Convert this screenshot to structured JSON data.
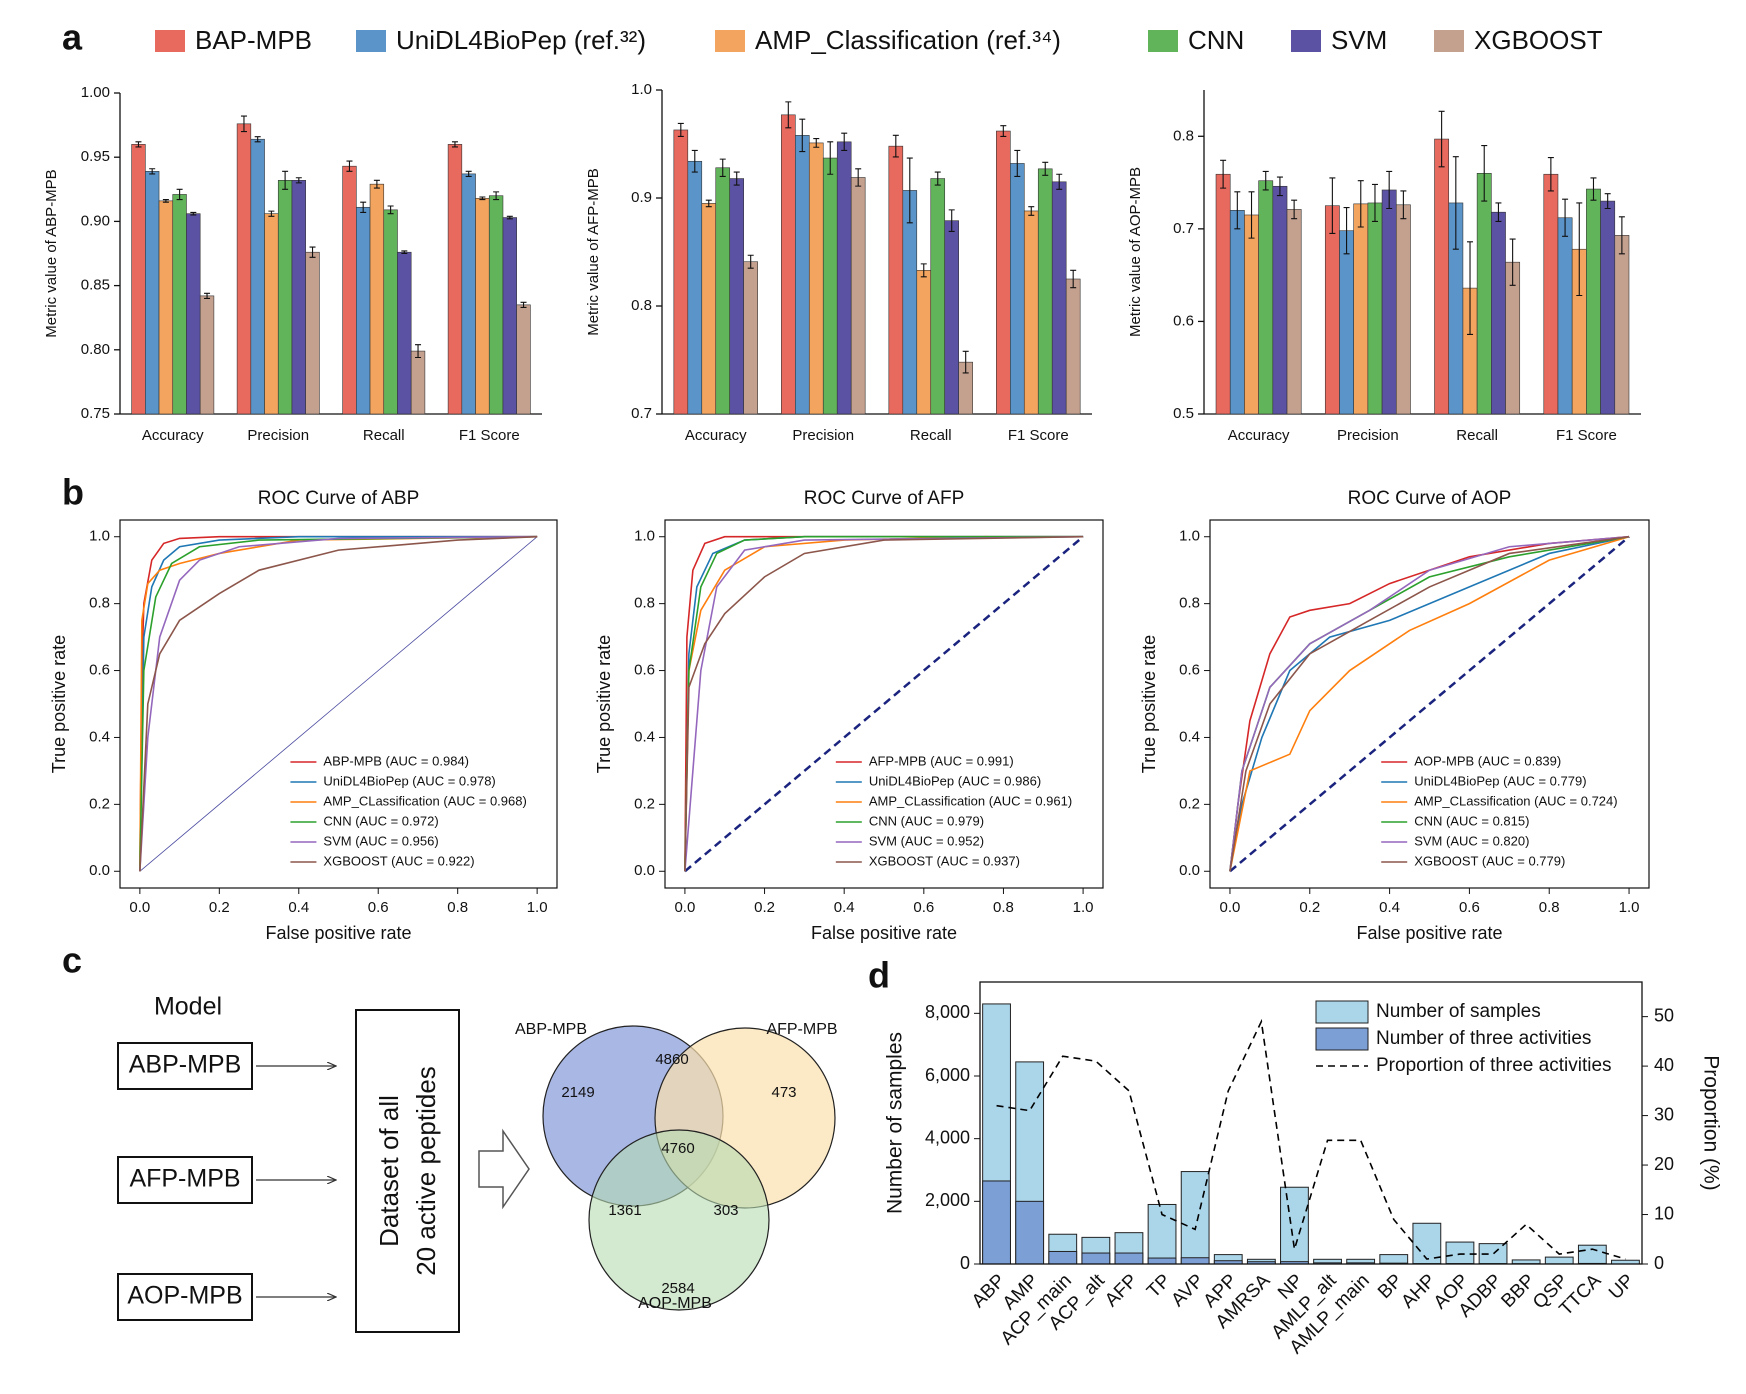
{
  "panel_labels": [
    "a",
    "b",
    "c",
    "d"
  ],
  "legend": [
    {
      "name": "BAP-MPB",
      "color": "#e8695e"
    },
    {
      "name": "UniDL4BioPep (ref.³²)",
      "color": "#5b94c8"
    },
    {
      "name": "AMP_Classification (ref.³⁴)",
      "color": "#f3a45e"
    },
    {
      "name": "CNN",
      "color": "#62b45a"
    },
    {
      "name": "SVM",
      "color": "#5b52a3"
    },
    {
      "name": "XGBOOST",
      "color": "#c4a08f"
    }
  ],
  "chart_data": [
    {
      "type": "bar",
      "ylabel": "Metric value of ABP-MPB",
      "categories": [
        "Accuracy",
        "Precision",
        "Recall",
        "F1 Score"
      ],
      "ylim": [
        0.75,
        1.0
      ],
      "yticks": [
        0.75,
        {
          "value": 0.8,
          "label": "0.80"
        },
        0.85,
        {
          "value": 0.9,
          "label": "0.90"
        },
        0.95,
        {
          "value": 1.0,
          "label": "1.00"
        }
      ],
      "series": [
        {
          "color": "#e8695e",
          "values": [
            0.96,
            0.976,
            0.943,
            0.96
          ],
          "errors": [
            0.002,
            0.006,
            0.004,
            0.002
          ]
        },
        {
          "color": "#5b94c8",
          "values": [
            0.939,
            0.964,
            0.911,
            0.937
          ],
          "errors": [
            0.002,
            0.002,
            0.004,
            0.002
          ]
        },
        {
          "color": "#f3a45e",
          "values": [
            0.916,
            0.906,
            0.929,
            0.918
          ],
          "errors": [
            0.001,
            0.002,
            0.003,
            0.001
          ]
        },
        {
          "color": "#62b45a",
          "values": [
            0.921,
            0.932,
            0.909,
            0.92
          ],
          "errors": [
            0.004,
            0.007,
            0.003,
            0.003
          ]
        },
        {
          "color": "#5b52a3",
          "values": [
            0.906,
            0.932,
            0.876,
            0.903
          ],
          "errors": [
            0.001,
            0.002,
            0.001,
            0.001
          ]
        },
        {
          "color": "#c4a08f",
          "values": [
            0.842,
            0.876,
            0.799,
            0.835
          ],
          "errors": [
            0.002,
            0.004,
            0.005,
            0.002
          ]
        }
      ]
    },
    {
      "type": "bar",
      "ylabel": "Metric value of AFP-MPB",
      "categories": [
        "Accuracy",
        "Precision",
        "Recall",
        "F1 Score"
      ],
      "ylim": [
        0.7,
        1.0
      ],
      "yticks": [
        0.7,
        0.8,
        0.9,
        {
          "value": 1.0,
          "label": "1.0"
        }
      ],
      "series": [
        {
          "color": "#e8695e",
          "values": [
            0.963,
            0.977,
            0.948,
            0.962
          ],
          "errors": [
            0.006,
            0.012,
            0.01,
            0.005
          ]
        },
        {
          "color": "#5b94c8",
          "values": [
            0.934,
            0.958,
            0.907,
            0.932
          ],
          "errors": [
            0.01,
            0.015,
            0.03,
            0.012
          ]
        },
        {
          "color": "#f3a45e",
          "values": [
            0.895,
            0.951,
            0.833,
            0.888
          ],
          "errors": [
            0.003,
            0.004,
            0.006,
            0.004
          ]
        },
        {
          "color": "#62b45a",
          "values": [
            0.928,
            0.937,
            0.918,
            0.927
          ],
          "errors": [
            0.008,
            0.015,
            0.006,
            0.006
          ]
        },
        {
          "color": "#5b52a3",
          "values": [
            0.918,
            0.952,
            0.879,
            0.915
          ],
          "errors": [
            0.006,
            0.008,
            0.01,
            0.007
          ]
        },
        {
          "color": "#c4a08f",
          "values": [
            0.841,
            0.919,
            0.748,
            0.825
          ],
          "errors": [
            0.006,
            0.008,
            0.01,
            0.008
          ]
        }
      ]
    },
    {
      "type": "bar",
      "ylabel": "Metric value of AOP-MPB",
      "categories": [
        "Accuracy",
        "Precision",
        "Recall",
        "F1 Score"
      ],
      "ylim": [
        0.5,
        0.85
      ],
      "yticks": [
        0.5,
        0.6,
        0.7,
        0.8
      ],
      "series": [
        {
          "color": "#e8695e",
          "values": [
            0.759,
            0.725,
            0.797,
            0.759
          ],
          "errors": [
            0.015,
            0.03,
            0.03,
            0.018
          ]
        },
        {
          "color": "#5b94c8",
          "values": [
            0.72,
            0.698,
            0.728,
            0.712
          ],
          "errors": [
            0.02,
            0.025,
            0.05,
            0.02
          ]
        },
        {
          "color": "#f3a45e",
          "values": [
            0.715,
            0.727,
            0.636,
            0.678
          ],
          "errors": [
            0.025,
            0.025,
            0.05,
            0.05
          ]
        },
        {
          "color": "#62b45a",
          "values": [
            0.752,
            0.728,
            0.76,
            0.743
          ],
          "errors": [
            0.01,
            0.02,
            0.03,
            0.012
          ]
        },
        {
          "color": "#5b52a3",
          "values": [
            0.746,
            0.742,
            0.718,
            0.73
          ],
          "errors": [
            0.01,
            0.02,
            0.01,
            0.008
          ]
        },
        {
          "color": "#c4a08f",
          "values": [
            0.721,
            0.726,
            0.664,
            0.693
          ],
          "errors": [
            0.01,
            0.015,
            0.025,
            0.02
          ]
        }
      ]
    },
    {
      "type": "line",
      "title": "ROC Curve of ABP",
      "xlabel": "False positive rate",
      "ylabel": "True positive rate",
      "xlim": [
        -0.05,
        1.05
      ],
      "ylim": [
        -0.05,
        1.05
      ],
      "reference_line": "solid",
      "xticks": [
        {
          "value": 0,
          "label": "0.0"
        },
        0.2,
        0.4,
        0.6,
        0.8,
        {
          "value": 1,
          "label": "1.0"
        }
      ],
      "yticks": [
        {
          "value": 0,
          "label": "0.0"
        },
        0.2,
        0.4,
        0.6,
        0.8,
        {
          "value": 1,
          "label": "1.0"
        }
      ],
      "series": [
        {
          "name": "ABP-MPB (AUC = 0.984)",
          "color": "#d62728",
          "x": [
            0,
            0.005,
            0.01,
            0.03,
            0.06,
            0.1,
            0.2,
            1
          ],
          "values": [
            0,
            0.6,
            0.8,
            0.93,
            0.98,
            0.995,
            1,
            1
          ]
        },
        {
          "name": "UniDL4BioPep (AUC = 0.978)",
          "color": "#1f77b4",
          "x": [
            0,
            0.01,
            0.03,
            0.06,
            0.1,
            0.2,
            0.4,
            1
          ],
          "values": [
            0,
            0.7,
            0.85,
            0.93,
            0.97,
            0.99,
            1,
            1
          ]
        },
        {
          "name": "AMP_CLassification (AUC = 0.968)",
          "color": "#ff7f0e",
          "x": [
            0,
            0.005,
            0.02,
            0.05,
            0.1,
            0.2,
            0.4,
            1
          ],
          "values": [
            0,
            0.75,
            0.86,
            0.9,
            0.92,
            0.95,
            0.99,
            1
          ]
        },
        {
          "name": "CNN (AUC = 0.972)",
          "color": "#2ca02c",
          "x": [
            0,
            0.01,
            0.04,
            0.08,
            0.15,
            0.3,
            1
          ],
          "values": [
            0,
            0.6,
            0.82,
            0.92,
            0.97,
            0.99,
            1
          ]
        },
        {
          "name": "SVM (AUC = 0.956)",
          "color": "#9467bd",
          "x": [
            0,
            0.02,
            0.05,
            0.1,
            0.15,
            0.25,
            0.5,
            1
          ],
          "values": [
            0,
            0.4,
            0.7,
            0.87,
            0.93,
            0.97,
            0.995,
            1
          ]
        },
        {
          "name": "XGBOOST (AUC = 0.922)",
          "color": "#8c564b",
          "x": [
            0,
            0.02,
            0.05,
            0.1,
            0.2,
            0.3,
            0.5,
            0.8,
            1
          ],
          "values": [
            0,
            0.5,
            0.65,
            0.75,
            0.83,
            0.9,
            0.96,
            0.99,
            1
          ]
        }
      ]
    },
    {
      "type": "line",
      "title": "ROC Curve of AFP",
      "xlabel": "False positive rate",
      "ylabel": "True positive rate",
      "xlim": [
        -0.05,
        1.05
      ],
      "ylim": [
        -0.05,
        1.05
      ],
      "reference_line": "dashed",
      "xticks": [
        {
          "value": 0,
          "label": "0.0"
        },
        0.2,
        0.4,
        0.6,
        0.8,
        {
          "value": 1,
          "label": "1.0"
        }
      ],
      "yticks": [
        {
          "value": 0,
          "label": "0.0"
        },
        0.2,
        0.4,
        0.6,
        0.8,
        {
          "value": 1,
          "label": "1.0"
        }
      ],
      "series": [
        {
          "name": "AFP-MPB (AUC = 0.991)",
          "color": "#d62728",
          "x": [
            0,
            0.005,
            0.02,
            0.05,
            0.1,
            1
          ],
          "values": [
            0,
            0.7,
            0.9,
            0.98,
            1,
            1
          ]
        },
        {
          "name": "UniDL4BioPep (AUC = 0.986)",
          "color": "#1f77b4",
          "x": [
            0,
            0.01,
            0.03,
            0.07,
            0.15,
            0.3,
            1
          ],
          "values": [
            0,
            0.65,
            0.85,
            0.95,
            0.99,
            1,
            1
          ]
        },
        {
          "name": "AMP_CLassification (AUC = 0.961)",
          "color": "#ff7f0e",
          "x": [
            0,
            0.01,
            0.04,
            0.1,
            0.2,
            0.4,
            0.76
          ],
          "values": [
            0,
            0.6,
            0.78,
            0.9,
            0.97,
            0.99,
            1
          ]
        },
        {
          "name": "CNN (AUC = 0.979)",
          "color": "#2ca02c",
          "x": [
            0,
            0.01,
            0.04,
            0.08,
            0.15,
            0.3,
            1
          ],
          "values": [
            0,
            0.6,
            0.85,
            0.95,
            0.99,
            1,
            1
          ]
        },
        {
          "name": "SVM (AUC = 0.952)",
          "color": "#9467bd",
          "x": [
            0,
            0.02,
            0.04,
            0.08,
            0.15,
            0.3,
            1
          ],
          "values": [
            0,
            0.3,
            0.6,
            0.85,
            0.96,
            0.99,
            1
          ]
        },
        {
          "name": "XGBOOST (AUC = 0.937)",
          "color": "#8c564b",
          "x": [
            0,
            0.01,
            0.05,
            0.1,
            0.2,
            0.3,
            0.5,
            1
          ],
          "values": [
            0,
            0.55,
            0.68,
            0.77,
            0.88,
            0.95,
            0.99,
            1
          ]
        }
      ]
    },
    {
      "type": "line",
      "title": "ROC Curve of AOP",
      "xlabel": "False positive rate",
      "ylabel": "True positive rate",
      "xlim": [
        -0.05,
        1.05
      ],
      "ylim": [
        -0.05,
        1.05
      ],
      "reference_line": "dashed",
      "xticks": [
        {
          "value": 0,
          "label": "0.0"
        },
        0.2,
        0.4,
        0.6,
        0.8,
        {
          "value": 1,
          "label": "1.0"
        }
      ],
      "yticks": [
        {
          "value": 0,
          "label": "0.0"
        },
        0.2,
        0.4,
        0.6,
        0.8,
        {
          "value": 1,
          "label": "1.0"
        }
      ],
      "series": [
        {
          "name": "AOP-MPB (AUC = 0.839)",
          "color": "#d62728",
          "x": [
            0,
            0.02,
            0.05,
            0.1,
            0.15,
            0.2,
            0.3,
            0.4,
            0.6,
            0.8,
            1
          ],
          "values": [
            0,
            0.2,
            0.45,
            0.65,
            0.76,
            0.78,
            0.8,
            0.86,
            0.94,
            0.98,
            1
          ]
        },
        {
          "name": "UniDL4BioPep (AUC = 0.779)",
          "color": "#1f77b4",
          "x": [
            0,
            0.03,
            0.08,
            0.15,
            0.25,
            0.4,
            0.6,
            0.8,
            1
          ],
          "values": [
            0,
            0.2,
            0.4,
            0.6,
            0.7,
            0.75,
            0.85,
            0.95,
            1
          ]
        },
        {
          "name": "AMP_CLassification (AUC = 0.724)",
          "color": "#ff7f0e",
          "x": [
            0,
            0.05,
            0.15,
            0.2,
            0.3,
            0.45,
            0.6,
            0.8,
            1
          ],
          "values": [
            0,
            0.3,
            0.35,
            0.48,
            0.6,
            0.72,
            0.8,
            0.93,
            1
          ]
        },
        {
          "name": "CNN (AUC = 0.815)",
          "color": "#2ca02c",
          "x": [
            0,
            0.03,
            0.1,
            0.2,
            0.35,
            0.5,
            0.7,
            0.9,
            1
          ],
          "values": [
            0,
            0.3,
            0.55,
            0.68,
            0.78,
            0.88,
            0.94,
            0.98,
            1
          ]
        },
        {
          "name": "SVM (AUC = 0.820)",
          "color": "#9467bd",
          "x": [
            0,
            0.03,
            0.1,
            0.2,
            0.35,
            0.5,
            0.7,
            1
          ],
          "values": [
            0,
            0.3,
            0.55,
            0.68,
            0.78,
            0.9,
            0.97,
            1
          ]
        },
        {
          "name": "XGBOOST (AUC = 0.779)",
          "color": "#8c564b",
          "x": [
            0,
            0.04,
            0.1,
            0.2,
            0.35,
            0.5,
            0.7,
            1
          ],
          "values": [
            0,
            0.3,
            0.5,
            0.65,
            0.75,
            0.85,
            0.95,
            1
          ]
        }
      ]
    },
    {
      "type": "bar",
      "ylabel": "Number of samples",
      "y2label": "Proportion (%)",
      "categories": [
        "ABP",
        "AMP",
        "ACP_main",
        "ACP_alt",
        "AFP",
        "TP",
        "AVP",
        "APP",
        "AMRSA",
        "NP",
        "AMLP_alt",
        "AMLP_main",
        "BP",
        "AHP",
        "AOP",
        "ADBP",
        "BBP",
        "QSP",
        "TTCA",
        "UP"
      ],
      "ylim": [
        0,
        9000
      ],
      "yticks": [
        0,
        {
          "value": 2000,
          "label": "2,000"
        },
        {
          "value": 4000,
          "label": "4,000"
        },
        {
          "value": 6000,
          "label": "6,000"
        },
        {
          "value": 8000,
          "label": "8,000"
        }
      ],
      "y2lim": [
        0,
        57
      ],
      "y2ticks": [
        0,
        10,
        20,
        30,
        40,
        50
      ],
      "series": [
        {
          "name": "Number of samples",
          "color": "#abd5e9",
          "values": [
            8300,
            6450,
            950,
            850,
            1000,
            1900,
            2950,
            300,
            150,
            2450,
            150,
            150,
            300,
            1300,
            700,
            650,
            130,
            220,
            600,
            120
          ]
        },
        {
          "name": "Number of three activities",
          "color": "#7c9fd6",
          "values": [
            2650,
            2000,
            400,
            350,
            350,
            190,
            200,
            105,
            73,
            75,
            37,
            37,
            27,
            13,
            14,
            13,
            10,
            4,
            18,
            1
          ]
        },
        {
          "name": "Proportion of three activities",
          "type": "line",
          "axis": "y2",
          "color": "#000000",
          "values": [
            32,
            31,
            42,
            41,
            35,
            10,
            7,
            35,
            49,
            3,
            25,
            25,
            9,
            1,
            2,
            2,
            8,
            2,
            3,
            1
          ]
        }
      ]
    }
  ],
  "diagram": {
    "model_heading": "Model",
    "models": [
      "ABP-MPB",
      "AFP-MPB",
      "AOP-MPB"
    ],
    "dataset": [
      "Dataset of all",
      "20 active peptides"
    ],
    "venn": {
      "labels": [
        "ABP-MPB",
        "AFP-MPB",
        "AOP-MPB"
      ],
      "regions": [
        2149,
        4860,
        473,
        4760,
        1361,
        303,
        2584
      ]
    }
  }
}
